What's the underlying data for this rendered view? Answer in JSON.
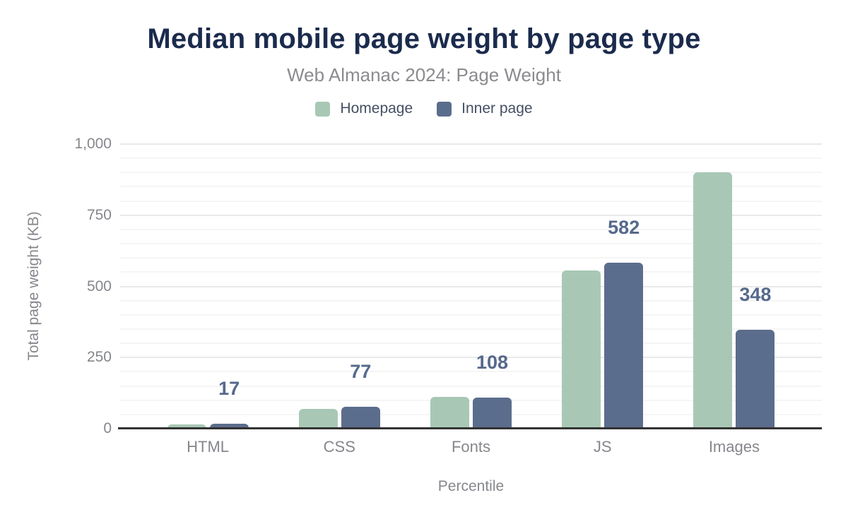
{
  "chart_data": {
    "type": "bar",
    "title": "Median mobile page weight by page type",
    "subtitle": "Web Almanac 2024: Page Weight",
    "categories": [
      "HTML",
      "CSS",
      "Fonts",
      "JS",
      "Images"
    ],
    "series": [
      {
        "name": "Homepage",
        "color": "#a8c8b5",
        "values": [
          15,
          70,
          112,
          555,
          900
        ]
      },
      {
        "name": "Inner page",
        "color": "#5b6d8c",
        "values": [
          17,
          77,
          108,
          582,
          348
        ],
        "data_labels": [
          "17",
          "77",
          "108",
          "582",
          "348"
        ]
      }
    ],
    "xlabel": "Percentile",
    "ylabel": "Total page weight (KB)",
    "ylim": [
      0,
      1000
    ],
    "y_ticks": [
      {
        "value": 0,
        "label": "0"
      },
      {
        "value": 250,
        "label": "250"
      },
      {
        "value": 500,
        "label": "500"
      },
      {
        "value": 750,
        "label": "750"
      },
      {
        "value": 1000,
        "label": "1,000"
      }
    ],
    "minor_grid_step": 50,
    "major_grid_step": 250,
    "grid": true,
    "legend_position": "top",
    "colors": {
      "title": "#1b2b4d",
      "subtitle": "#8b8b8f",
      "axis_text": "#85878c",
      "legend_text": "#454f63",
      "data_label": "#56698c",
      "baseline": "#333333",
      "grid_minor": "#f5f5f5",
      "grid_major": "#e9e9e9"
    }
  }
}
